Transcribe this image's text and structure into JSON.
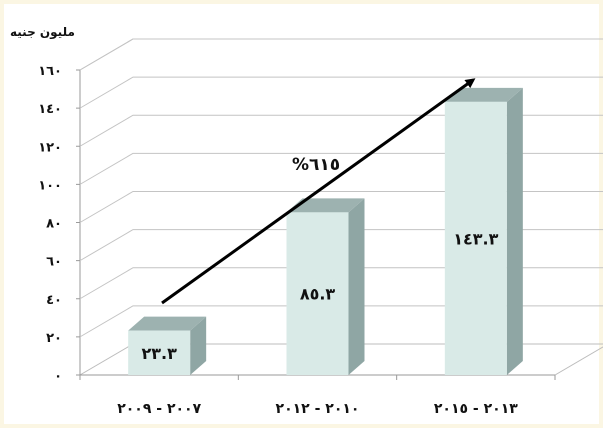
{
  "chart_data": {
    "type": "bar",
    "unit_label": "مليون جنيه",
    "categories": [
      "٢٠٠٧ - ٢٠٠٩",
      "٢٠١٠ - ٢٠١٢",
      "٢٠١٣ - ٢٠١٥"
    ],
    "values": [
      23.3,
      85.3,
      143.3
    ],
    "value_labels": [
      "٢٣.٣",
      "٨٥.٣",
      "١٤٣.٣"
    ],
    "ylim": [
      0,
      160
    ],
    "yticks": [
      0,
      20,
      40,
      60,
      80,
      100,
      120,
      140,
      160
    ],
    "ytick_labels": [
      "٠",
      "٢٠",
      "٤٠",
      "٦٠",
      "٨٠",
      "١٠٠",
      "١٢٠",
      "١٤٠",
      "١٦٠"
    ],
    "annotation": "%٦١٥",
    "grid": true,
    "colors": {
      "bar_front": "#d9eae7",
      "bar_side": "#8fa6a4",
      "bar_top": "#9db2b0",
      "arrow": "#000000"
    }
  }
}
